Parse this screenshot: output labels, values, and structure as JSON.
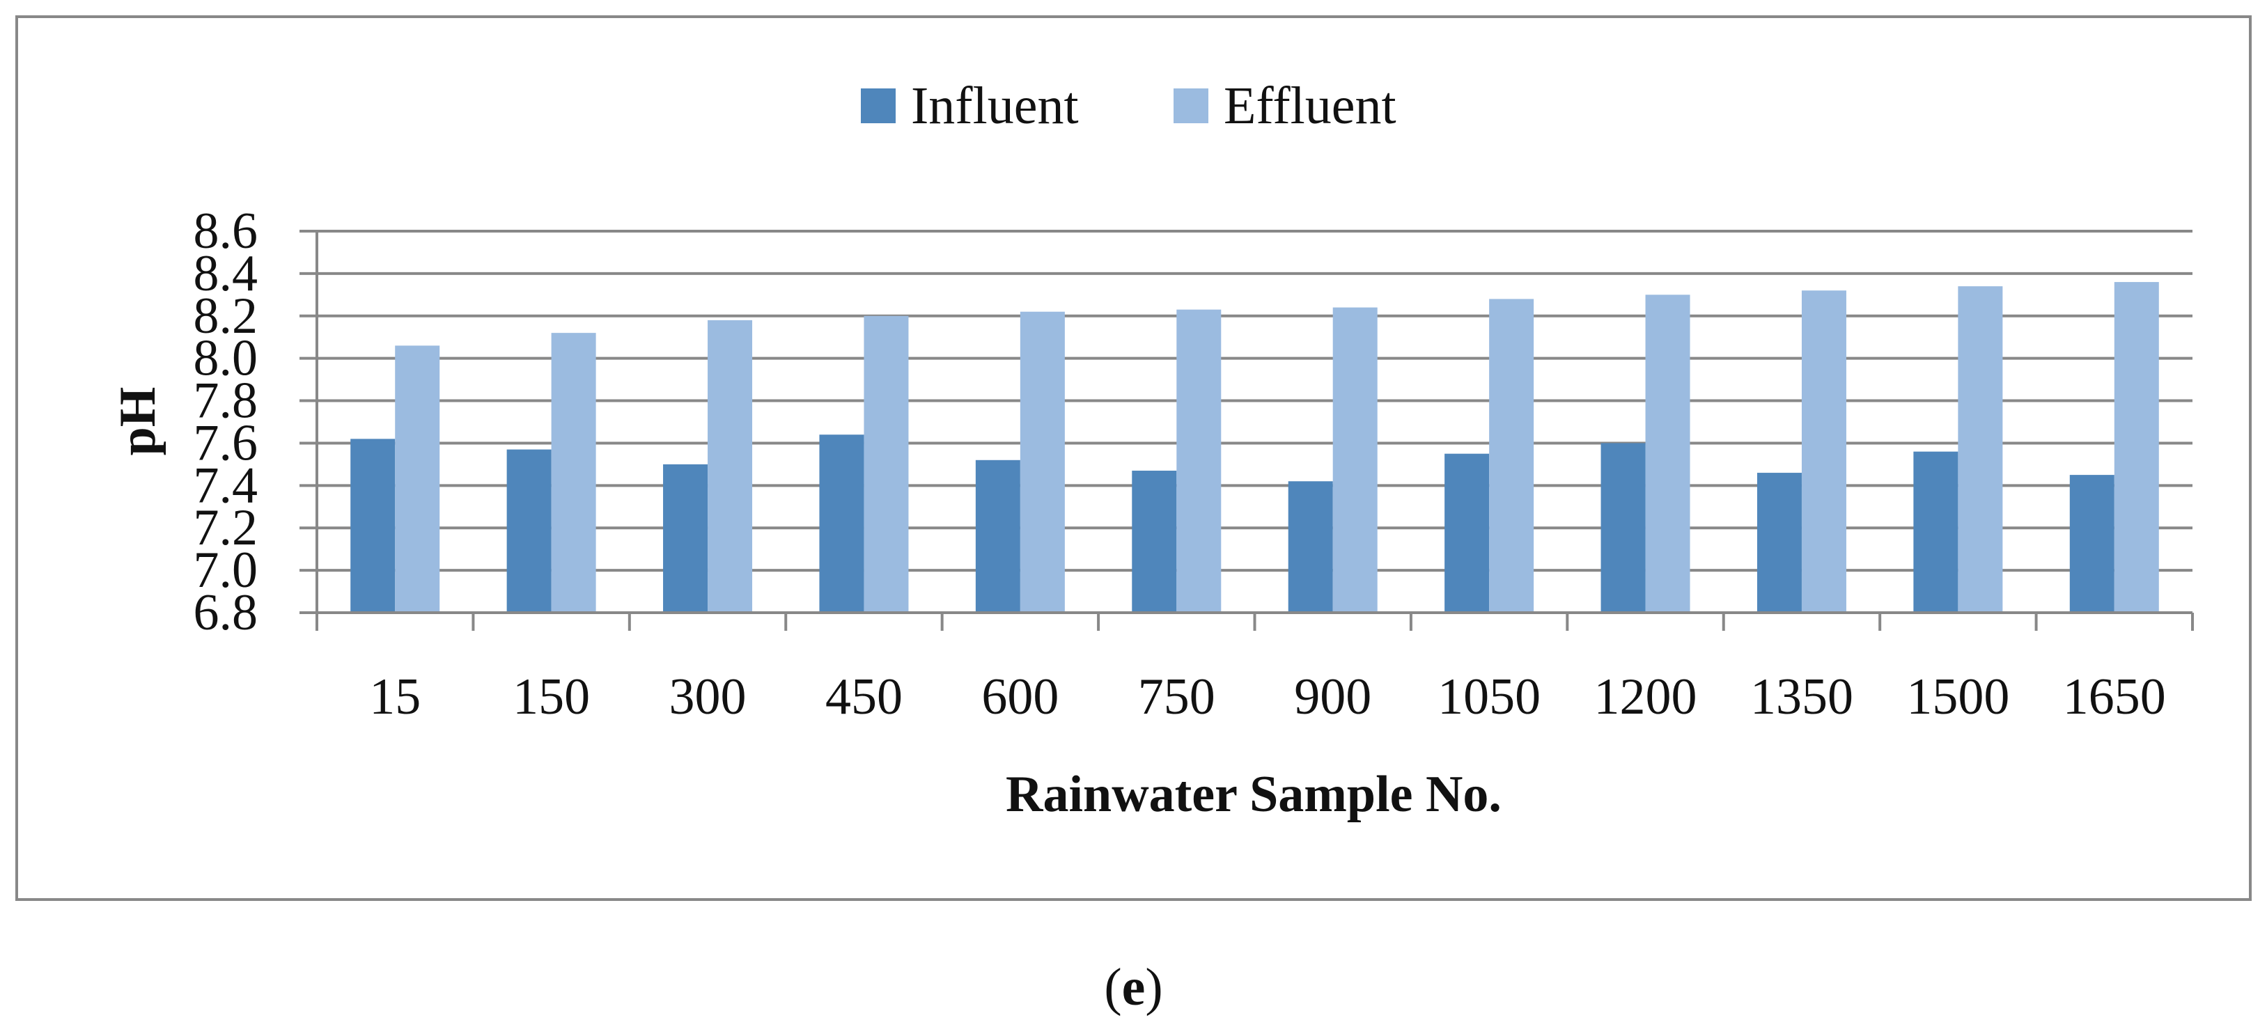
{
  "colors": {
    "influent": "#4f86bb",
    "effluent": "#9bbbe0",
    "grid": "#888888",
    "frame": "#888888"
  },
  "legend": [
    "Influent",
    "Effluent"
  ],
  "caption": {
    "open": "(",
    "letter": "e",
    "close": ")"
  },
  "chart_data": {
    "type": "bar",
    "title": "",
    "xlabel": "Rainwater Sample No.",
    "ylabel": "pH",
    "ylim": [
      6.8,
      8.6
    ],
    "yticks": [
      "6.8",
      "7.0",
      "7.2",
      "7.4",
      "7.6",
      "7.8",
      "8.0",
      "8.2",
      "8.4",
      "8.6"
    ],
    "grid": true,
    "legend_position": "top-center",
    "categories": [
      "15",
      "150",
      "300",
      "450",
      "600",
      "750",
      "900",
      "1050",
      "1200",
      "1350",
      "1500",
      "1650"
    ],
    "series": [
      {
        "name": "Influent",
        "values": [
          7.62,
          7.57,
          7.5,
          7.64,
          7.52,
          7.47,
          7.42,
          7.55,
          7.6,
          7.46,
          7.56,
          7.45
        ]
      },
      {
        "name": "Effluent",
        "values": [
          8.06,
          8.12,
          8.18,
          8.2,
          8.22,
          8.23,
          8.24,
          8.28,
          8.3,
          8.32,
          8.34,
          8.36
        ]
      }
    ]
  }
}
